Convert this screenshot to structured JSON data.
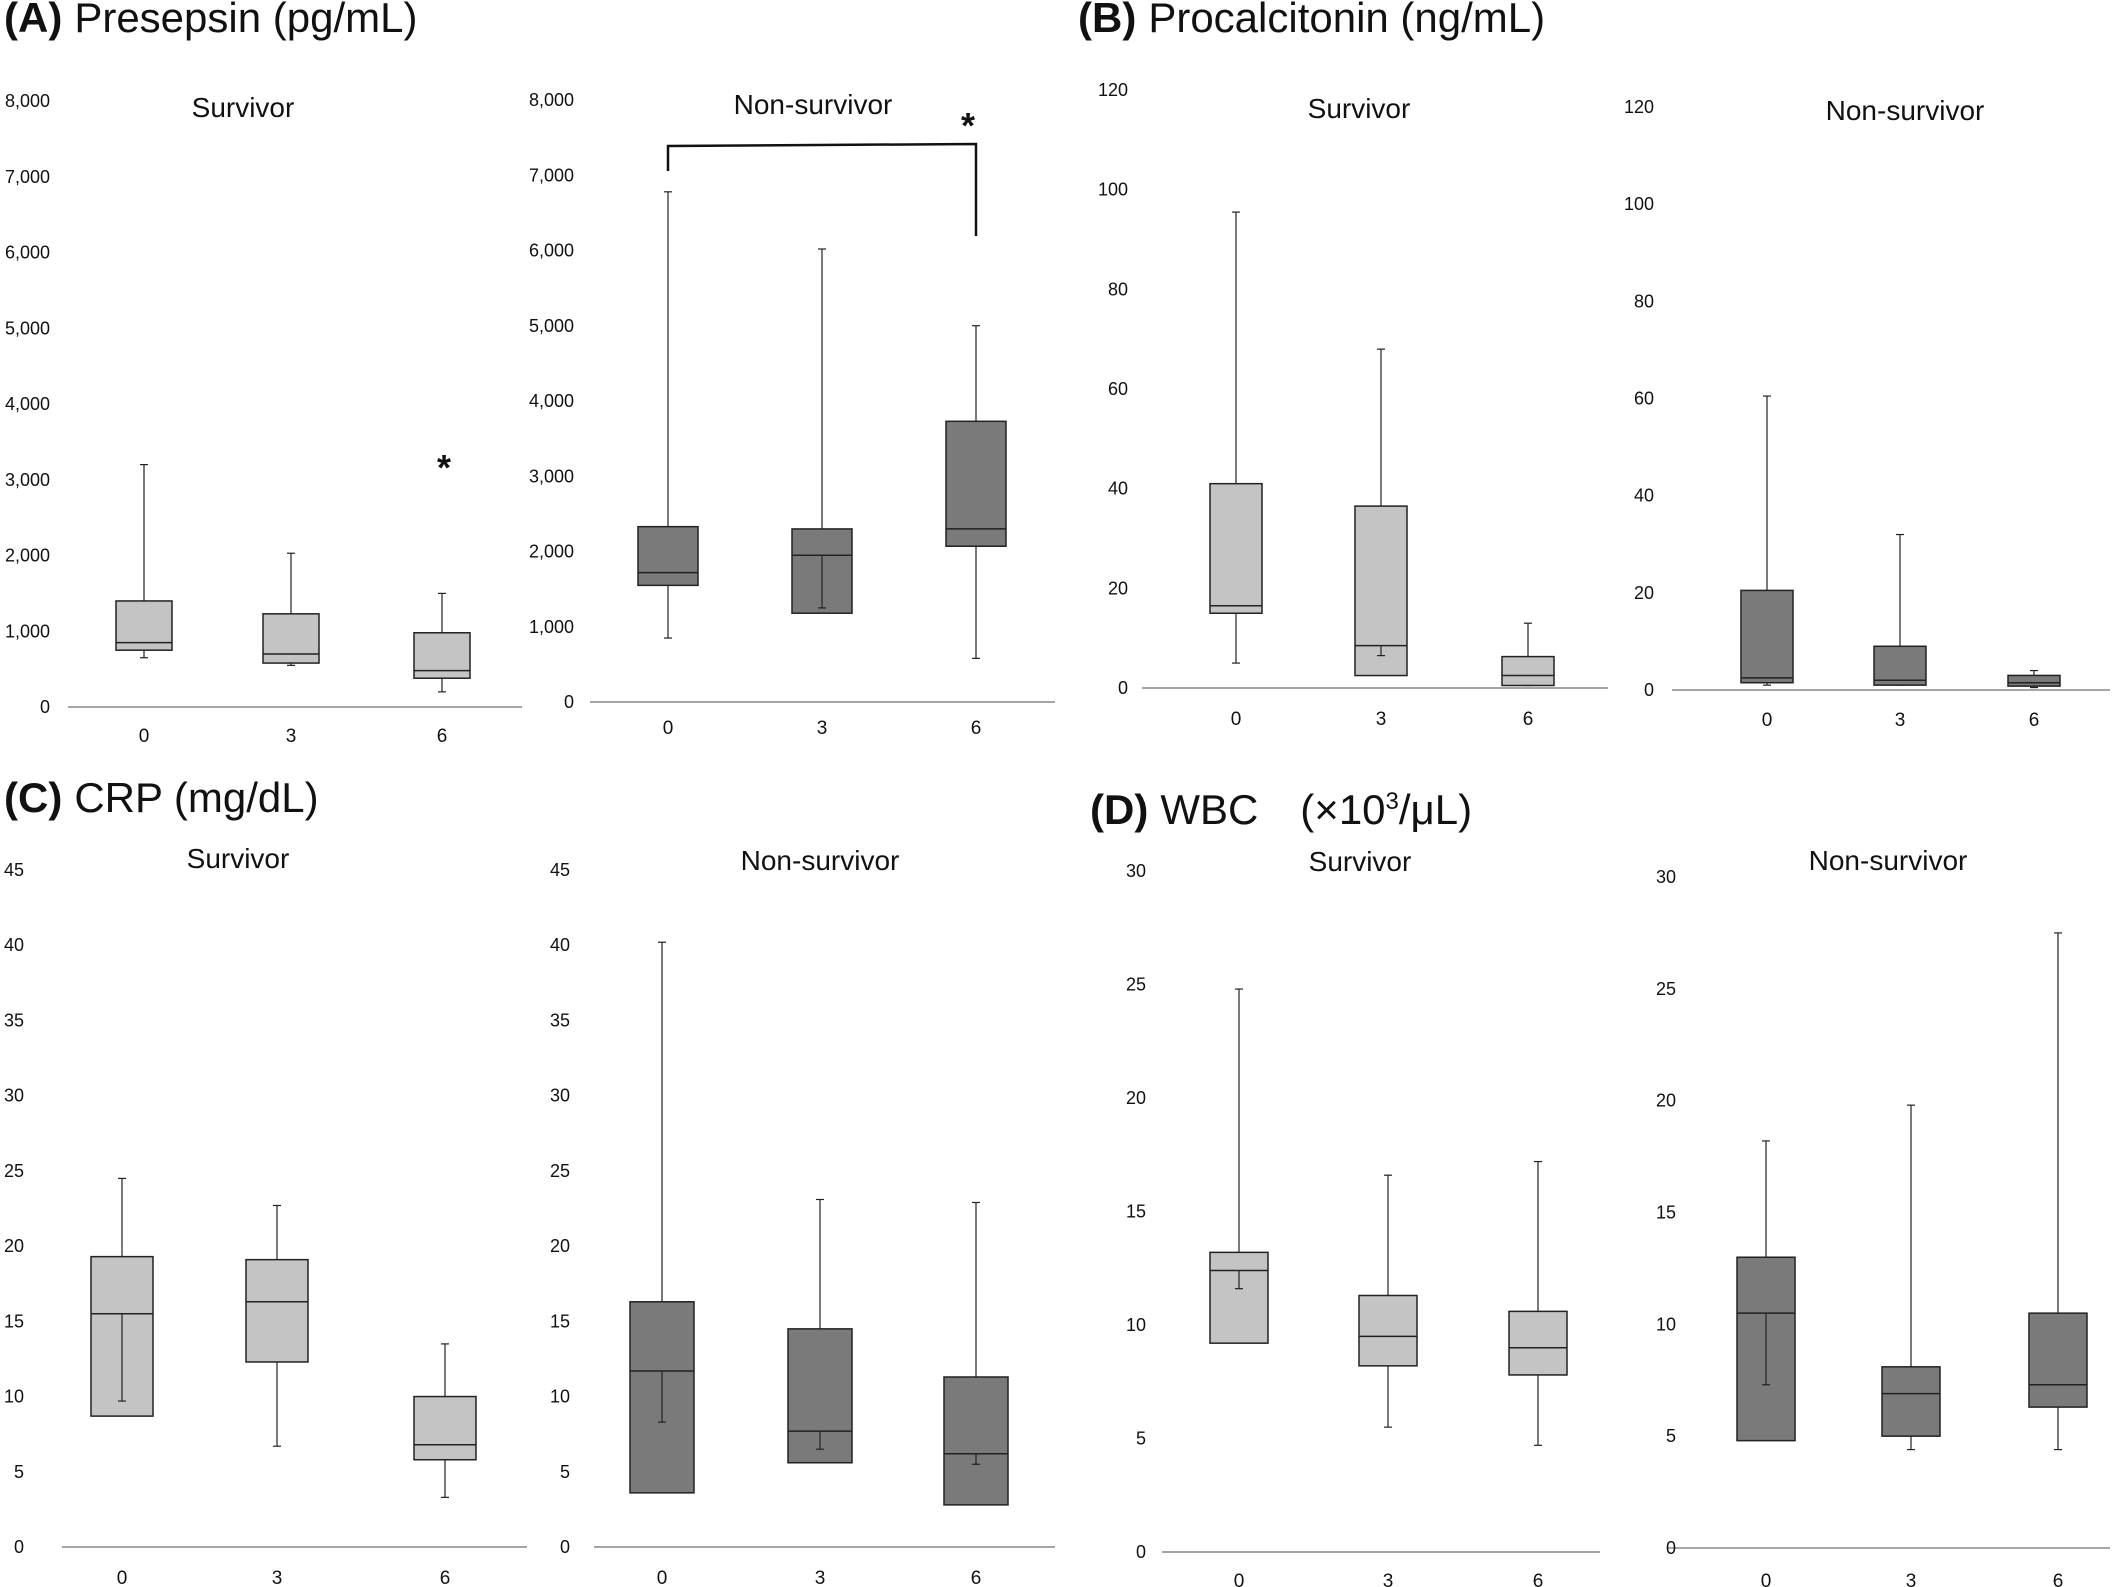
{
  "figure": {
    "panels": [
      {
        "letter": "(A)",
        "title": "Presepsin (pg/mL)"
      },
      {
        "letter": "(B)",
        "title": "Procalcitonin (ng/mL)"
      },
      {
        "letter": "(C)",
        "title": "CRP (mg/dL)"
      },
      {
        "letter": "(D)",
        "title_main": "WBC　(×10",
        "title_sup": "3",
        "title_tail": "/μL)"
      }
    ]
  },
  "colors": {
    "survivor_box": "#c4c4c4",
    "nonsurvivor_box": "#7a7a7a",
    "line": "#222222",
    "axis": "#888888"
  },
  "chart_data": [
    {
      "type": "box",
      "panel": "(A)",
      "title": "Survivor",
      "categories": [
        "0",
        "3",
        "6"
      ],
      "yticks": [
        "0",
        "1,000",
        "2,000",
        "3,000",
        "4,000",
        "5,000",
        "6,000",
        "7,000",
        "8,000"
      ],
      "ylim": [
        0,
        8000
      ],
      "series": [
        {
          "whisker_low": [
            650,
            550,
            200
          ],
          "q1": [
            750,
            580,
            380
          ],
          "median": [
            850,
            700,
            480
          ],
          "q3": [
            1400,
            1230,
            980
          ],
          "whisker_high": [
            3200,
            2030,
            1500
          ]
        }
      ],
      "annotations": [
        {
          "text": "*",
          "category": "6"
        }
      ]
    },
    {
      "type": "box",
      "panel": "(A)",
      "title": "Non-survivor",
      "categories": [
        "0",
        "3",
        "6"
      ],
      "yticks": [
        "0",
        "1,000",
        "2,000",
        "3,000",
        "4,000",
        "5,000",
        "6,000",
        "7,000",
        "8,000"
      ],
      "ylim": [
        0,
        8000
      ],
      "series": [
        {
          "whisker_low": [
            850,
            1250,
            580
          ],
          "q1": [
            1550,
            1180,
            2070
          ],
          "median": [
            1720,
            1950,
            2300
          ],
          "q3": [
            2330,
            2300,
            3730
          ],
          "whisker_high": [
            6780,
            6020,
            5000
          ]
        }
      ],
      "annotations": [
        {
          "text": "*",
          "bracket": [
            "0",
            "6"
          ]
        }
      ]
    },
    {
      "type": "box",
      "panel": "(B)",
      "title": "Survivor",
      "categories": [
        "0",
        "3",
        "6"
      ],
      "yticks": [
        "0",
        "20",
        "40",
        "60",
        "80",
        "100",
        "120"
      ],
      "ylim": [
        0,
        120
      ],
      "series": [
        {
          "whisker_low": [
            5,
            6.5,
            0.5
          ],
          "q1": [
            15,
            2.5,
            0.5
          ],
          "median": [
            16.5,
            8.5,
            2.5
          ],
          "q3": [
            41,
            36.5,
            6.3
          ],
          "whisker_high": [
            95.5,
            68,
            13
          ]
        }
      ]
    },
    {
      "type": "box",
      "panel": "(B)",
      "title": "Non-survivor",
      "categories": [
        "0",
        "3",
        "6"
      ],
      "yticks": [
        "0",
        "20",
        "40",
        "60",
        "80",
        "100",
        "120"
      ],
      "ylim": [
        0,
        120
      ],
      "series": [
        {
          "whisker_low": [
            1,
            1,
            0.5
          ],
          "q1": [
            1.5,
            1,
            0.8
          ],
          "median": [
            2.5,
            2,
            1.5
          ],
          "q3": [
            20.5,
            9,
            3
          ],
          "whisker_high": [
            60.5,
            32,
            4
          ]
        }
      ]
    },
    {
      "type": "box",
      "panel": "(C)",
      "title": "Survivor",
      "categories": [
        "0",
        "3",
        "6"
      ],
      "yticks": [
        "0",
        "5",
        "10",
        "15",
        "20",
        "25",
        "30",
        "35",
        "40",
        "45"
      ],
      "ylim": [
        0,
        45
      ],
      "series": [
        {
          "whisker_low": [
            9.7,
            6.7,
            3.3
          ],
          "q1": [
            8.7,
            12.3,
            5.8
          ],
          "median": [
            15.5,
            16.3,
            6.8
          ],
          "q3": [
            19.3,
            19.1,
            10
          ],
          "whisker_high": [
            24.5,
            22.7,
            13.5
          ]
        }
      ]
    },
    {
      "type": "box",
      "panel": "(C)",
      "title": "Non-survivor",
      "categories": [
        "0",
        "3",
        "6"
      ],
      "yticks": [
        "0",
        "5",
        "10",
        "15",
        "20",
        "25",
        "30",
        "35",
        "40",
        "45"
      ],
      "ylim": [
        0,
        45
      ],
      "series": [
        {
          "whisker_low": [
            8.3,
            6.5,
            5.5
          ],
          "q1": [
            3.6,
            5.6,
            2.8
          ],
          "median": [
            11.7,
            7.7,
            6.2
          ],
          "q3": [
            16.3,
            14.5,
            11.3
          ],
          "whisker_high": [
            40.2,
            23.1,
            22.9
          ]
        }
      ]
    },
    {
      "type": "box",
      "panel": "(D)",
      "title": "Survivor",
      "categories": [
        "0",
        "3",
        "6"
      ],
      "yticks": [
        "0",
        "5",
        "10",
        "15",
        "20",
        "25",
        "30"
      ],
      "ylim": [
        0,
        30
      ],
      "series": [
        {
          "whisker_low": [
            11.6,
            5.5,
            4.7
          ],
          "q1": [
            9.2,
            8.2,
            7.8
          ],
          "median": [
            12.4,
            9.5,
            9
          ],
          "q3": [
            13.2,
            11.3,
            10.6
          ],
          "whisker_high": [
            24.8,
            16.6,
            17.2
          ]
        }
      ]
    },
    {
      "type": "box",
      "panel": "(D)",
      "title": "Non-survivor",
      "categories": [
        "0",
        "3",
        "6"
      ],
      "yticks": [
        "0",
        "5",
        "10",
        "15",
        "20",
        "25",
        "30"
      ],
      "ylim": [
        0,
        30
      ],
      "series": [
        {
          "whisker_low": [
            7.3,
            4.4,
            4.4
          ],
          "q1": [
            4.8,
            5,
            6.3
          ],
          "median": [
            10.5,
            6.9,
            7.3
          ],
          "q3": [
            13,
            8.1,
            10.5
          ],
          "whisker_high": [
            18.2,
            19.8,
            27.5
          ]
        }
      ]
    }
  ]
}
